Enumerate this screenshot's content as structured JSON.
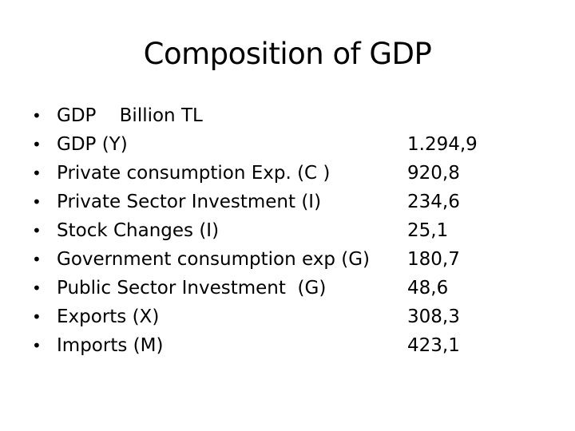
{
  "title": "Composition of GDP",
  "rows": [
    {
      "label": "GDP    Billion TL",
      "value": ""
    },
    {
      "label": "GDP (Y)",
      "value": "1.294,9"
    },
    {
      "label": "Private consumption Exp. (C )",
      "value": "920,8"
    },
    {
      "label": "Private Sector Investment (I)",
      "value": "234,6"
    },
    {
      "label": "Stock Changes (I)",
      "value": "25,1"
    },
    {
      "label": "Government consumption exp (G)",
      "value": "180,7"
    },
    {
      "label": "Public Sector Investment  (G)",
      "value": "48,6"
    },
    {
      "label": "Exports (X)",
      "value": "308,3"
    },
    {
      "label": "Imports (M)",
      "value": "423,1"
    }
  ],
  "bullet_glyph": "•"
}
